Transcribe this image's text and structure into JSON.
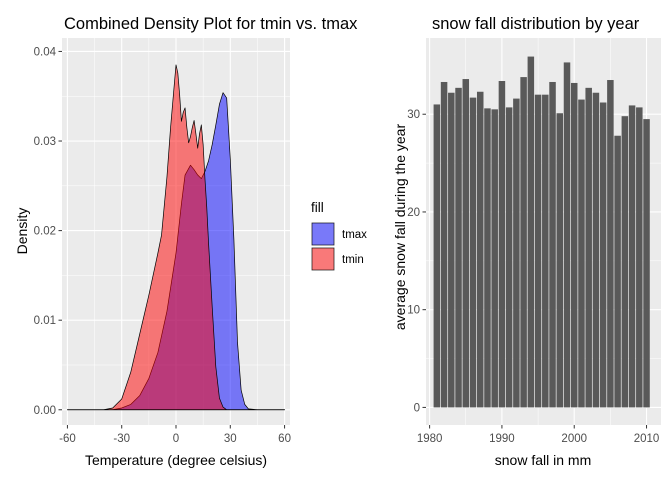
{
  "chart_data": [
    {
      "type": "area",
      "title": "Combined Density Plot for tmin vs. tmax",
      "xlabel": "Temperature (degree celsius)",
      "ylabel": "Density",
      "xlim": [
        -63,
        63
      ],
      "ylim": [
        -0.0017,
        0.0415
      ],
      "x_ticks": [
        -60,
        -30,
        0,
        30,
        60
      ],
      "y_ticks": [
        0.0,
        0.01,
        0.02,
        0.03,
        0.04
      ],
      "x_tick_labels": [
        "-60",
        "-30",
        "0",
        "30",
        "60"
      ],
      "y_tick_labels": [
        "0.00",
        "0.01",
        "0.02",
        "0.03",
        "0.04"
      ],
      "grid": true,
      "legend": {
        "title": "fill",
        "position": "right",
        "entries": [
          {
            "label": "tmax",
            "color": "#0000FF",
            "opacity": 0.5
          },
          {
            "label": "tmin",
            "color": "#FF0000",
            "opacity": 0.5
          }
        ]
      },
      "series": [
        {
          "name": "tmax",
          "color": "#0000FF",
          "x": [
            -60,
            -35,
            -30,
            -25,
            -20,
            -15,
            -10,
            -5,
            0,
            3,
            5,
            8,
            10,
            12,
            14,
            16,
            18,
            20,
            22,
            24,
            26,
            28,
            30,
            32,
            34,
            36,
            38,
            40,
            45,
            60
          ],
          "y": [
            0,
            0,
            0.0002,
            0.0006,
            0.0016,
            0.0035,
            0.0064,
            0.011,
            0.0175,
            0.023,
            0.0262,
            0.0273,
            0.0268,
            0.0262,
            0.0258,
            0.0266,
            0.0278,
            0.0296,
            0.0318,
            0.0341,
            0.0354,
            0.0348,
            0.028,
            0.019,
            0.0075,
            0.0022,
            0.0006,
            0.0001,
            0,
            0
          ]
        },
        {
          "name": "tmin",
          "color": "#FF0000",
          "x": [
            -60,
            -40,
            -35,
            -30,
            -25,
            -20,
            -15,
            -10,
            -8,
            -5,
            -3,
            -1,
            0,
            1,
            2,
            3,
            4,
            5,
            6,
            7,
            8,
            9,
            10,
            11,
            12,
            13,
            14,
            15,
            16,
            17,
            18,
            20,
            22,
            24,
            26,
            28,
            32,
            60
          ],
          "y": [
            0,
            0,
            0.0002,
            0.0012,
            0.0042,
            0.0085,
            0.0128,
            0.0175,
            0.0195,
            0.026,
            0.0315,
            0.0362,
            0.0385,
            0.0376,
            0.0352,
            0.0322,
            0.0332,
            0.0337,
            0.0315,
            0.0298,
            0.0305,
            0.0315,
            0.0323,
            0.0308,
            0.0292,
            0.0308,
            0.0318,
            0.0296,
            0.0258,
            0.0226,
            0.0186,
            0.0115,
            0.0048,
            0.0013,
            0.0003,
            0,
            0,
            0
          ]
        }
      ]
    },
    {
      "type": "bar",
      "title": "snow fall distribution by year",
      "xlabel": "snow fall in mm",
      "ylabel": "average snow fall during the year",
      "xlim": [
        1979.5,
        2012.0
      ],
      "ylim": [
        -1.8,
        37.8
      ],
      "x_ticks": [
        1980,
        1990,
        2000,
        2010
      ],
      "y_ticks": [
        0,
        10,
        20,
        30
      ],
      "x_tick_labels": [
        "1980",
        "1990",
        "2000",
        "2010"
      ],
      "y_tick_labels": [
        "0",
        "10",
        "20",
        "30"
      ],
      "grid": true,
      "bar_color": "#595959",
      "categories": [
        1981,
        1982,
        1983,
        1984,
        1985,
        1986,
        1987,
        1988,
        1989,
        1990,
        1991,
        1992,
        1993,
        1994,
        1995,
        1996,
        1997,
        1998,
        1999,
        2000,
        2001,
        2002,
        2003,
        2004,
        2005,
        2006,
        2007,
        2008,
        2009,
        2010
      ],
      "values": [
        31.0,
        33.3,
        32.2,
        32.7,
        33.6,
        31.7,
        32.3,
        30.6,
        30.5,
        33.4,
        30.7,
        31.6,
        33.8,
        35.9,
        32.0,
        32.0,
        33.3,
        30.1,
        35.3,
        33.2,
        31.5,
        32.7,
        32.2,
        31.2,
        33.5,
        27.8,
        29.8,
        30.9,
        30.7,
        29.5
      ]
    }
  ]
}
